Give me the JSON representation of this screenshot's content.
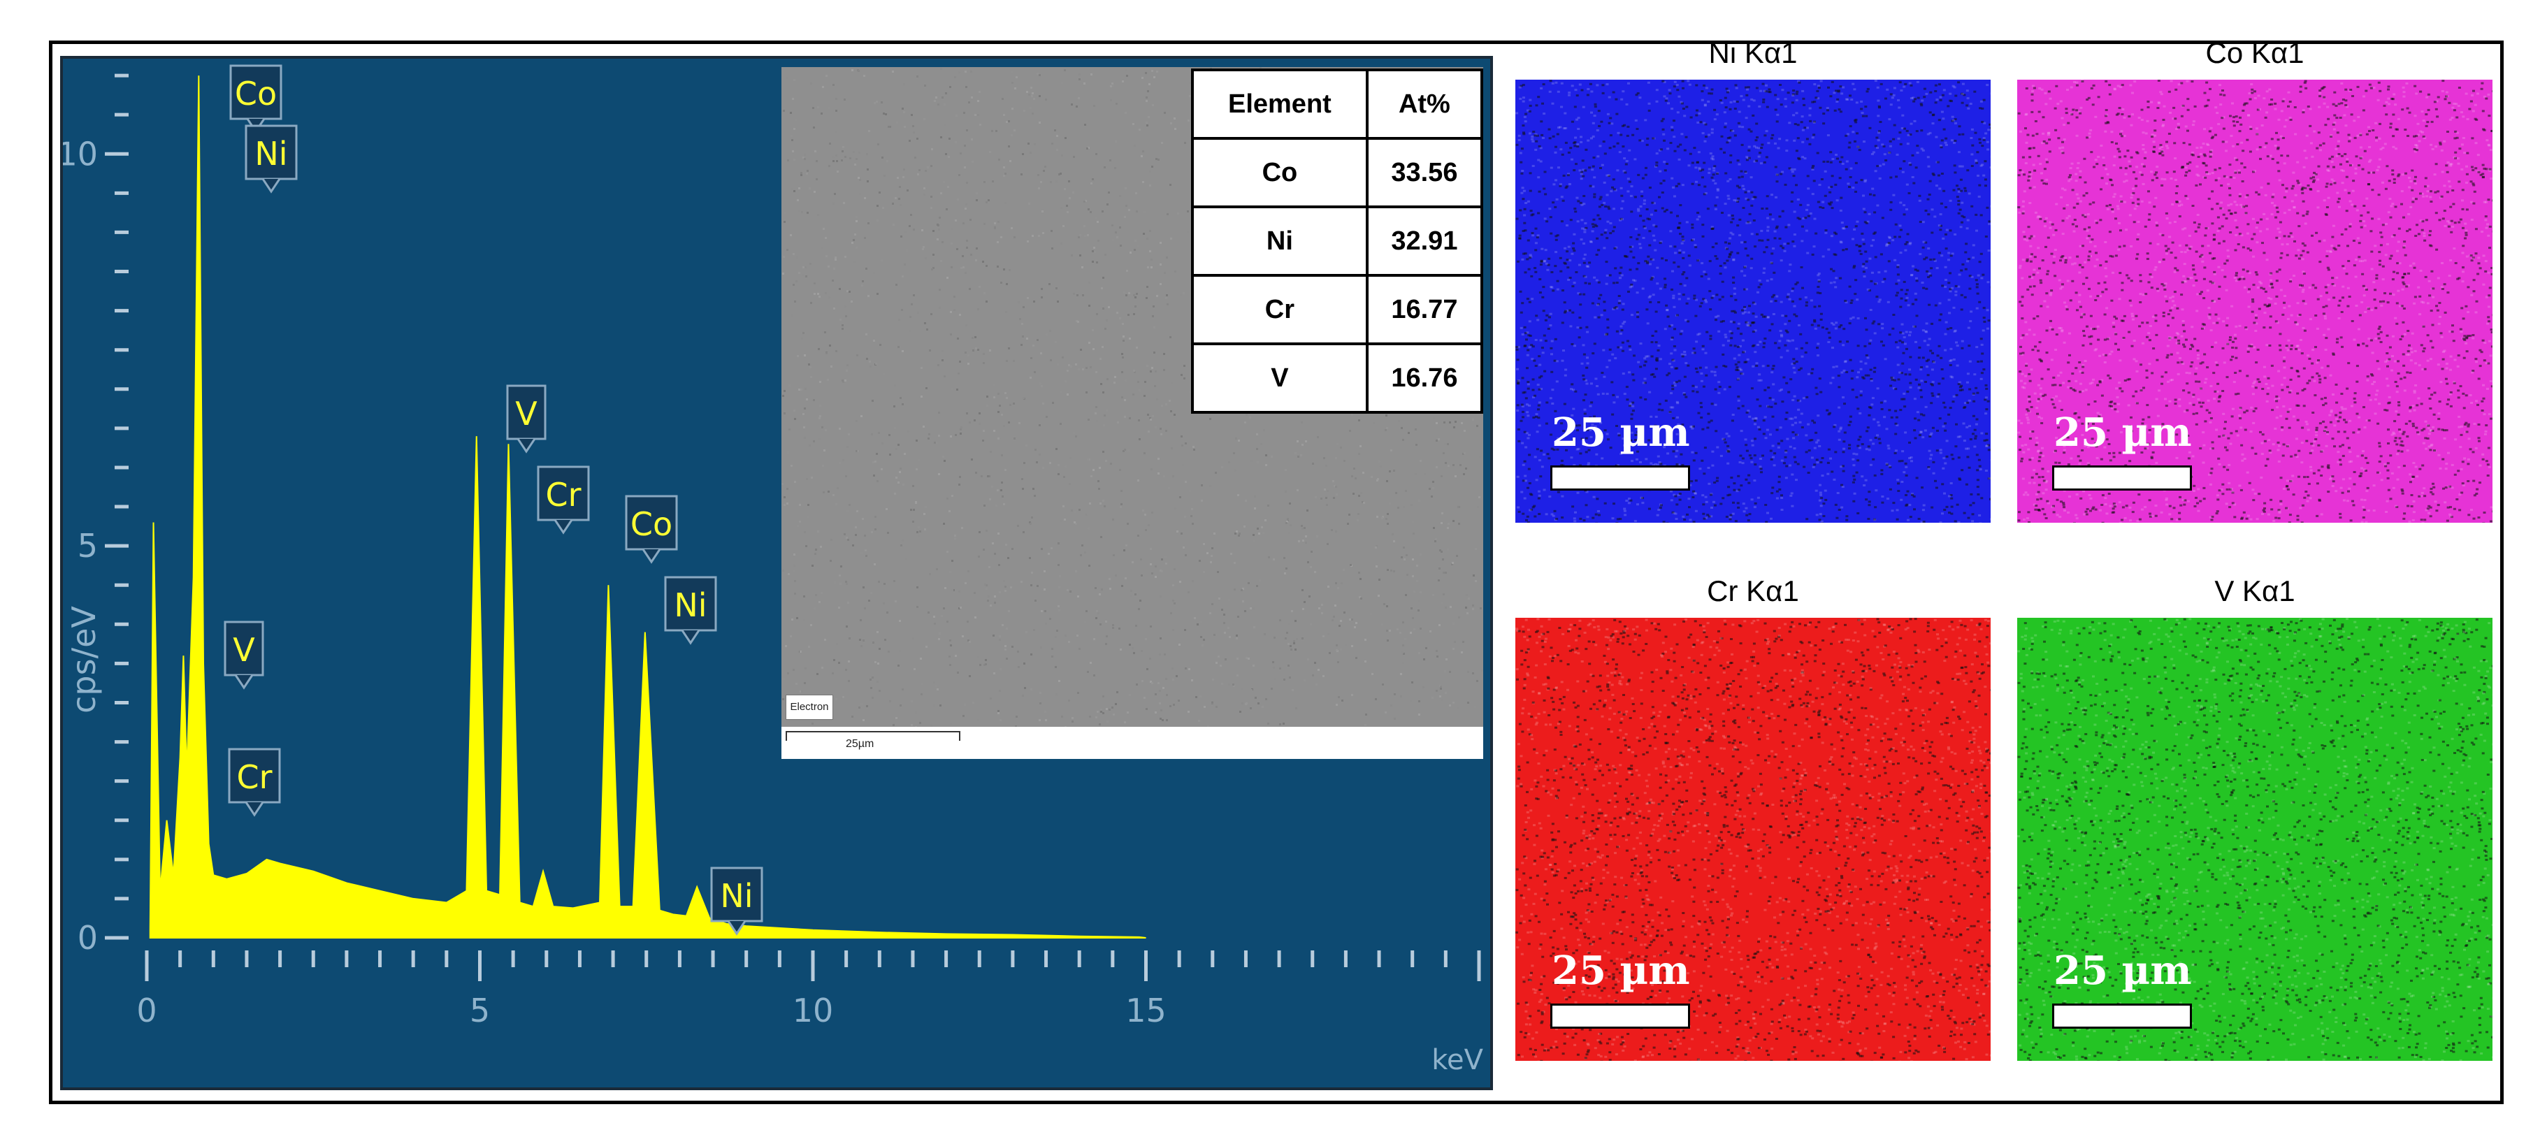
{
  "chart_data": {
    "type": "line",
    "title": "",
    "xlabel": "keV",
    "ylabel": "cps/eV",
    "xlim": [
      0,
      20
    ],
    "ylim": [
      0,
      11.5
    ],
    "x_ticks": [
      0,
      5,
      10,
      15
    ],
    "y_ticks": [
      0,
      5,
      10
    ],
    "grid": false,
    "series": [
      {
        "color": "#ffff00",
        "x": [
          0.05,
          0.1,
          0.2,
          0.3,
          0.4,
          0.5,
          0.55,
          0.6,
          0.7,
          0.78,
          0.85,
          0.93,
          1.0,
          1.2,
          1.5,
          1.8,
          2.0,
          2.5,
          3.0,
          3.5,
          4.0,
          4.5,
          4.8,
          4.95,
          5.1,
          5.3,
          5.43,
          5.6,
          5.8,
          5.95,
          6.1,
          6.4,
          6.8,
          6.93,
          7.1,
          7.3,
          7.48,
          7.7,
          7.9,
          8.1,
          8.26,
          8.45,
          8.7,
          9.0,
          10.0,
          11.0,
          12.0,
          13.0,
          14.0,
          14.9,
          15.0
        ],
        "y": [
          0.1,
          5.3,
          0.6,
          1.5,
          0.8,
          2.3,
          3.6,
          2.1,
          4.6,
          11.0,
          3.5,
          1.2,
          0.8,
          0.75,
          0.82,
          1.0,
          0.95,
          0.85,
          0.7,
          0.6,
          0.5,
          0.45,
          0.6,
          6.4,
          0.6,
          0.55,
          6.3,
          0.45,
          0.4,
          0.85,
          0.4,
          0.38,
          0.45,
          4.5,
          0.4,
          0.4,
          3.9,
          0.35,
          0.3,
          0.28,
          0.65,
          0.25,
          0.18,
          0.15,
          0.1,
          0.07,
          0.05,
          0.04,
          0.02,
          0.01,
          0.0
        ]
      }
    ],
    "peak_labels": [
      {
        "label": "Co",
        "keV": 0.78
      },
      {
        "label": "Ni",
        "keV": 0.85
      },
      {
        "label": "V",
        "keV": 0.51
      },
      {
        "label": "Cr",
        "keV": 0.57
      },
      {
        "label": "V",
        "keV": 4.95
      },
      {
        "label": "Cr",
        "keV": 5.41
      },
      {
        "label": "Co",
        "keV": 6.93
      },
      {
        "label": "Ni",
        "keV": 7.48
      },
      {
        "label": "Ni",
        "keV": 8.26
      }
    ]
  },
  "sem": {
    "caption": "Electron",
    "scale_label": "25µm"
  },
  "composition_table": {
    "headers": [
      "Element",
      "At%"
    ],
    "rows": [
      [
        "Co",
        "33.56"
      ],
      [
        "Ni",
        "32.91"
      ],
      [
        "Cr",
        "16.77"
      ],
      [
        "V",
        "16.76"
      ]
    ]
  },
  "maps": [
    {
      "title": "Ni Kα1",
      "scale_label": "25 µm",
      "color": "#1e20e6"
    },
    {
      "title": "Co Kα1",
      "scale_label": "25 µm",
      "color": "#e633d6"
    },
    {
      "title": "Cr Kα1",
      "scale_label": "25 µm",
      "color": "#ec1c1c"
    },
    {
      "title": "V Kα1",
      "scale_label": "25 µm",
      "color": "#24c424"
    }
  ]
}
